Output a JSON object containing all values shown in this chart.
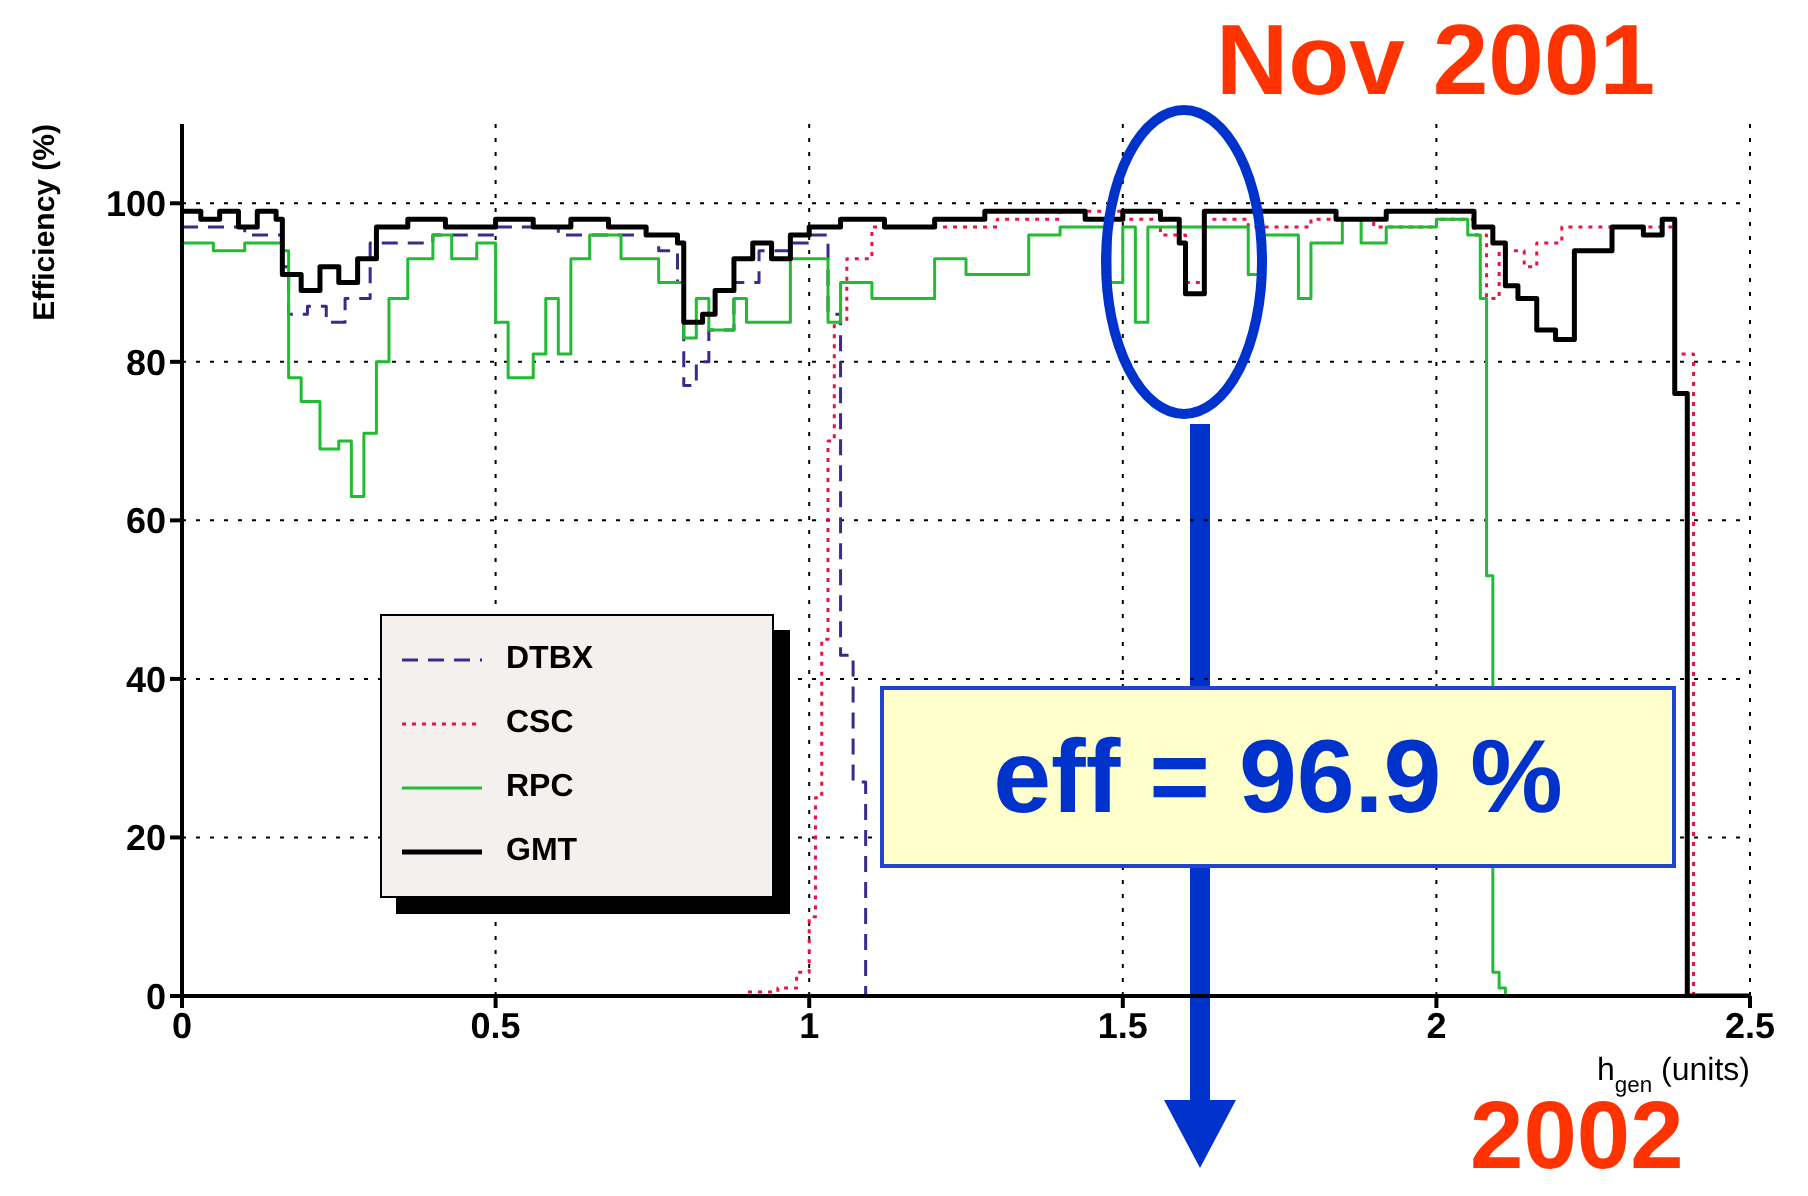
{
  "chart_data": {
    "type": "step",
    "xlabel": "h$_{gen}$ (units)",
    "ylabel": "Efficiency (%)",
    "xlim": [
      0,
      2.5
    ],
    "xticks": [
      0,
      0.5,
      1,
      1.5,
      2,
      2.5
    ],
    "ylim": [
      0,
      110
    ],
    "yticks": [
      0,
      20,
      40,
      60,
      80,
      100
    ],
    "grid": true,
    "legend": "bottom left",
    "annotations": [
      "Nov 2001",
      "eff = 96.9 %",
      "2002"
    ],
    "series": [
      {
        "name": "DTBX",
        "color": "#3a2a8c",
        "line_style": "dashed",
        "x": [
          0,
          0.1,
          0.16,
          0.17,
          0.2,
          0.23,
          0.26,
          0.3,
          0.4,
          0.5,
          0.6,
          0.7,
          0.76,
          0.79,
          0.8,
          0.82,
          0.84,
          0.88,
          0.92,
          0.97,
          1.0,
          1.03,
          1.05,
          1.07,
          1.09,
          1.1
        ],
        "values": [
          97,
          96,
          92,
          86,
          87,
          85,
          88,
          95,
          96,
          97,
          96,
          96,
          94,
          90,
          77,
          80,
          84,
          90,
          94,
          95,
          96,
          86,
          43,
          27,
          0,
          0
        ]
      },
      {
        "name": "CSC",
        "color": "#ee1144",
        "line_style": "dotted",
        "x": [
          0,
          0.9,
          0.95,
          0.98,
          1.0,
          1.01,
          1.02,
          1.03,
          1.04,
          1.06,
          1.1,
          1.2,
          1.3,
          1.4,
          1.5,
          1.56,
          1.6,
          1.63,
          1.7,
          1.8,
          1.9,
          2.0,
          2.06,
          2.08,
          2.1,
          2.14,
          2.16,
          2.2,
          2.3,
          2.38,
          2.41,
          2.5
        ],
        "values": [
          0,
          0.5,
          1,
          3,
          10,
          25,
          45,
          70,
          85,
          93,
          97,
          97,
          98,
          99,
          98,
          96,
          90,
          98,
          97,
          98,
          97,
          98,
          96,
          88,
          94,
          92,
          95,
          97,
          97,
          81,
          0,
          0
        ]
      },
      {
        "name": "RPC",
        "color": "#22bb33",
        "line_style": "solid",
        "x": [
          0,
          0.05,
          0.1,
          0.16,
          0.17,
          0.19,
          0.22,
          0.25,
          0.27,
          0.29,
          0.31,
          0.33,
          0.36,
          0.4,
          0.43,
          0.47,
          0.5,
          0.52,
          0.55,
          0.56,
          0.58,
          0.6,
          0.62,
          0.65,
          0.7,
          0.76,
          0.8,
          0.82,
          0.84,
          0.88,
          0.9,
          0.97,
          1.03,
          1.05,
          1.1,
          1.2,
          1.25,
          1.35,
          1.4,
          1.48,
          1.5,
          1.52,
          1.54,
          1.6,
          1.7,
          1.72,
          1.75,
          1.78,
          1.8,
          1.85,
          1.88,
          1.92,
          2.0,
          2.05,
          2.07,
          2.08,
          2.09,
          2.1,
          2.11,
          2.4
        ],
        "values": [
          95,
          94,
          95,
          94,
          78,
          75,
          69,
          70,
          63,
          71,
          80,
          88,
          93,
          96,
          93,
          95,
          85,
          78,
          78,
          81,
          88,
          81,
          93,
          96,
          93,
          90,
          83,
          88,
          84,
          88,
          85,
          93,
          85,
          90,
          88,
          93,
          91,
          96,
          97,
          90,
          97,
          85,
          97,
          97,
          91,
          96,
          96,
          88,
          95,
          98,
          95,
          97,
          98,
          96,
          88,
          53,
          3,
          1,
          0,
          0
        ]
      },
      {
        "name": "GMT",
        "color": "#000000",
        "line_style": "solid",
        "x": [
          0,
          0.03,
          0.06,
          0.09,
          0.12,
          0.15,
          0.16,
          0.19,
          0.22,
          0.25,
          0.28,
          0.31,
          0.36,
          0.42,
          0.5,
          0.56,
          0.62,
          0.68,
          0.74,
          0.79,
          0.8,
          0.83,
          0.85,
          0.88,
          0.91,
          0.94,
          0.97,
          1.0,
          1.05,
          1.12,
          1.2,
          1.28,
          1.36,
          1.44,
          1.5,
          1.56,
          1.59,
          1.6,
          1.63,
          1.68,
          1.76,
          1.84,
          1.92,
          2.0,
          2.06,
          2.09,
          2.11,
          2.13,
          2.16,
          2.19,
          2.22,
          2.28,
          2.33,
          2.36,
          2.38,
          2.4,
          2.5
        ],
        "values": [
          99,
          98,
          99,
          97,
          99,
          98,
          91,
          89,
          92,
          90,
          93,
          97,
          98,
          97,
          98,
          97,
          98,
          97,
          96,
          95,
          85,
          86,
          89,
          93,
          95,
          93,
          96,
          97,
          98,
          97,
          98,
          99,
          99,
          98,
          99,
          98,
          95,
          88.6,
          99,
          99,
          99,
          98,
          99,
          99,
          97,
          95,
          89.6,
          88,
          84,
          82.8,
          94,
          97,
          96,
          98,
          76,
          0,
          0
        ]
      }
    ]
  }
}
